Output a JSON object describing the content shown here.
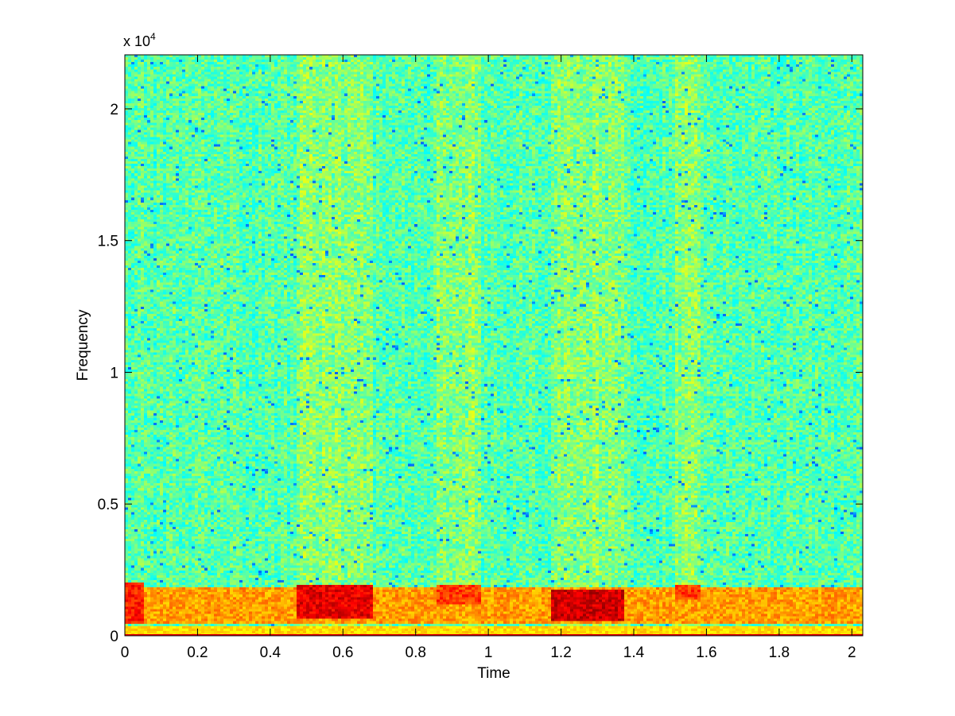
{
  "chart_data": {
    "type": "heatmap",
    "title": "",
    "xlabel": "Time",
    "ylabel": "Frequency",
    "xlim": [
      0,
      2.03
    ],
    "ylim": [
      0,
      22050
    ],
    "y_exponent_label": "x 10",
    "y_exponent_power": "4",
    "xticks": [
      {
        "value": 0,
        "label": "0"
      },
      {
        "value": 0.2,
        "label": "0.2"
      },
      {
        "value": 0.4,
        "label": "0.4"
      },
      {
        "value": 0.6,
        "label": "0.6"
      },
      {
        "value": 0.8,
        "label": "0.8"
      },
      {
        "value": 1.0,
        "label": "1"
      },
      {
        "value": 1.2,
        "label": "1.2"
      },
      {
        "value": 1.4,
        "label": "1.4"
      },
      {
        "value": 1.6,
        "label": "1.6"
      },
      {
        "value": 1.8,
        "label": "1.8"
      },
      {
        "value": 2.0,
        "label": "2"
      }
    ],
    "yticks": [
      {
        "value": 0,
        "label": "0"
      },
      {
        "value": 5000,
        "label": "0.5"
      },
      {
        "value": 10000,
        "label": "1"
      },
      {
        "value": 15000,
        "label": "1.5"
      },
      {
        "value": 20000,
        "label": "2"
      }
    ],
    "colormap": "jet",
    "energy_bands": [
      {
        "t_start": 0.0,
        "t_end": 2.03,
        "f_low": 500,
        "f_high": 1800,
        "level": 0.72
      },
      {
        "t_start": 0.0,
        "t_end": 0.05,
        "f_low": 450,
        "f_high": 2000,
        "level": 0.85
      },
      {
        "t_start": 0.47,
        "t_end": 0.68,
        "f_low": 600,
        "f_high": 1900,
        "level": 0.9
      },
      {
        "t_start": 0.86,
        "t_end": 0.98,
        "f_low": 1200,
        "f_high": 1900,
        "level": 0.82
      },
      {
        "t_start": 1.17,
        "t_end": 1.37,
        "f_low": 550,
        "f_high": 1700,
        "level": 0.92
      },
      {
        "t_start": 1.51,
        "t_end": 1.58,
        "f_low": 1400,
        "f_high": 1900,
        "level": 0.82
      }
    ],
    "voiced_segments": [
      {
        "t_start": 0.47,
        "t_end": 0.68
      },
      {
        "t_start": 0.86,
        "t_end": 0.98
      },
      {
        "t_start": 1.17,
        "t_end": 1.37
      },
      {
        "t_start": 1.51,
        "t_end": 1.58
      }
    ]
  }
}
